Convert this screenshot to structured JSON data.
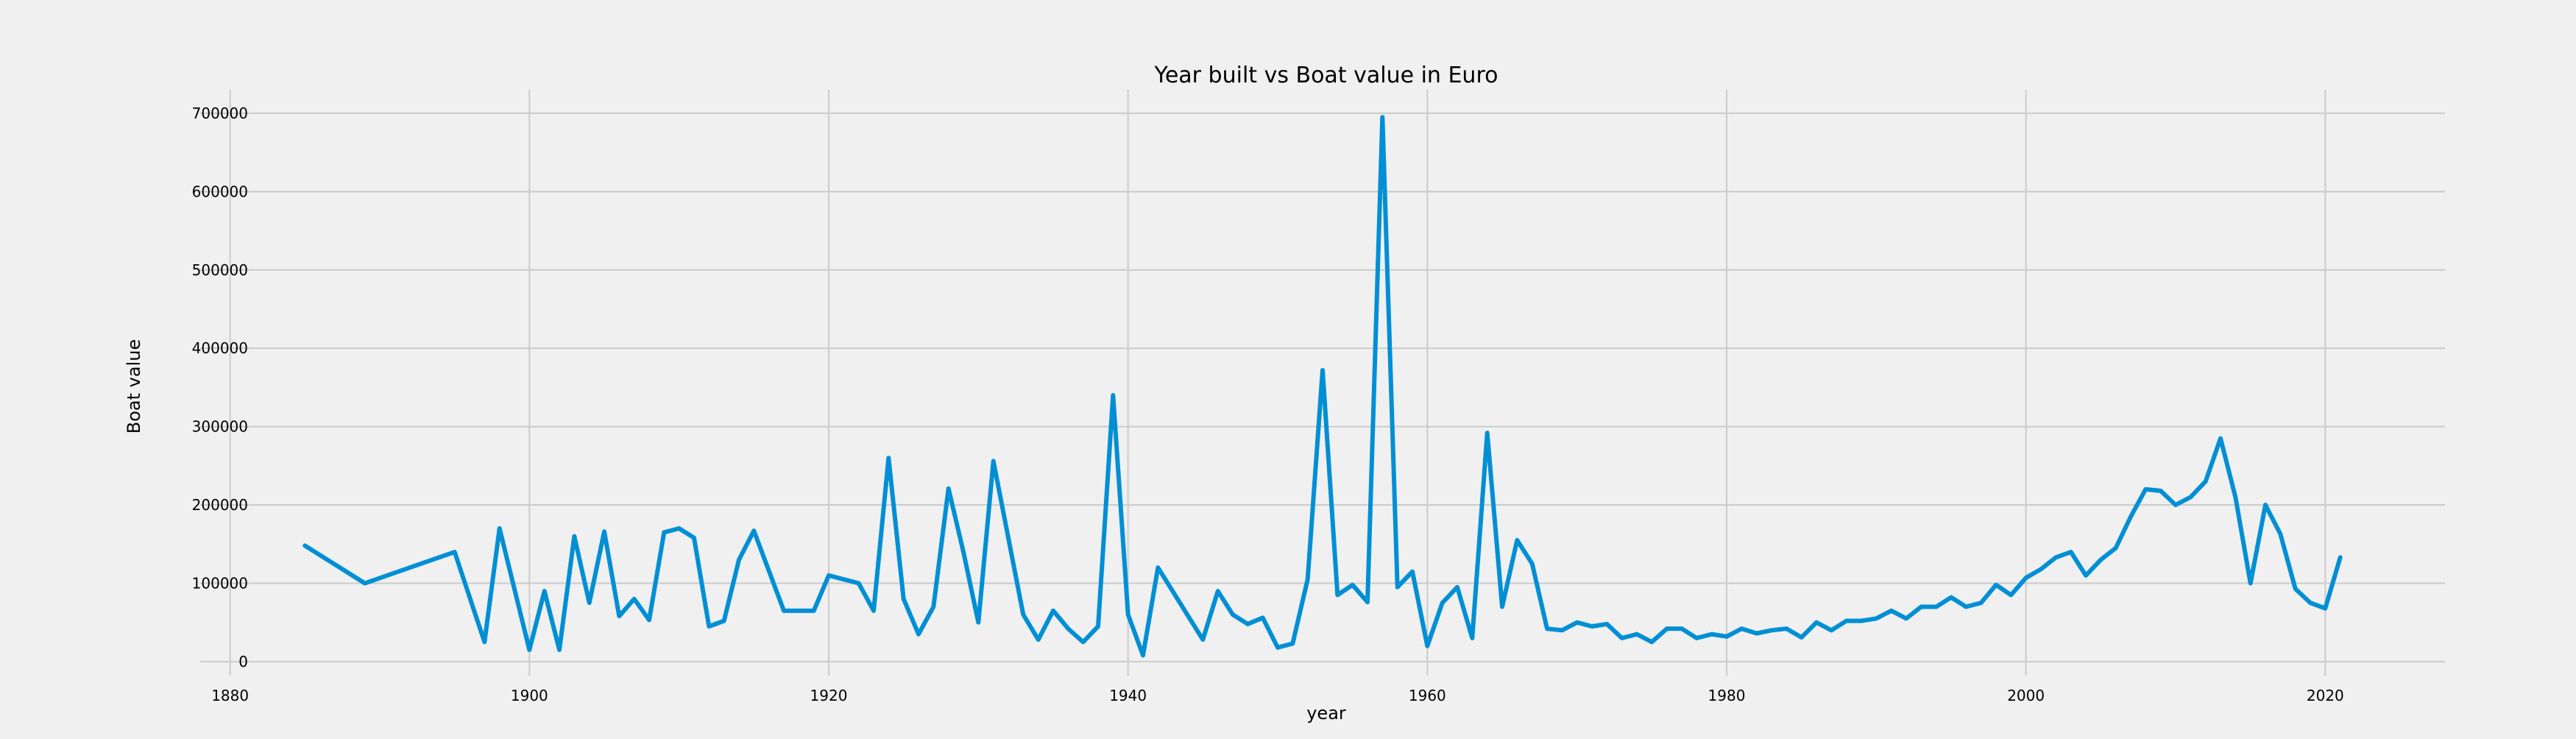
{
  "chart_data": {
    "type": "line",
    "title": "Year built vs Boat value in Euro",
    "xlabel": "year",
    "ylabel": "Boat value",
    "xlim": [
      1878,
      2028
    ],
    "ylim": [
      -18000,
      730000
    ],
    "grid": true,
    "style": "fivethirtyeight",
    "colors": {
      "line": "#008fd5",
      "background": "#f0f0f0",
      "grid": "#cbcbcb"
    },
    "x_ticks": [
      1880,
      1900,
      1920,
      1940,
      1960,
      1980,
      2000,
      2020
    ],
    "x_tick_labels": [
      "1880",
      "1900",
      "1920",
      "1940",
      "1960",
      "1980",
      "2000",
      "2020"
    ],
    "y_ticks": [
      0,
      100000,
      200000,
      300000,
      400000,
      500000,
      600000,
      700000
    ],
    "y_tick_labels": [
      "0",
      "100000",
      "200000",
      "300000",
      "400000",
      "500000",
      "600000",
      "700000"
    ],
    "series": [
      {
        "name": "Boat value",
        "x": [
          1885,
          1889,
          1895,
          1897,
          1898,
          1900,
          1901,
          1902,
          1903,
          1904,
          1905,
          1906,
          1907,
          1908,
          1909,
          1910,
          1911,
          1912,
          1913,
          1914,
          1915,
          1917,
          1919,
          1920,
          1922,
          1923,
          1924,
          1925,
          1926,
          1927,
          1928,
          1929,
          1930,
          1931,
          1933,
          1934,
          1935,
          1936,
          1937,
          1938,
          1939,
          1940,
          1941,
          1942,
          1945,
          1946,
          1947,
          1948,
          1949,
          1950,
          1951,
          1952,
          1953,
          1954,
          1955,
          1956,
          1957,
          1958,
          1959,
          1960,
          1961,
          1962,
          1963,
          1964,
          1965,
          1966,
          1967,
          1968,
          1969,
          1970,
          1971,
          1972,
          1973,
          1974,
          1975,
          1976,
          1977,
          1978,
          1979,
          1980,
          1981,
          1982,
          1983,
          1984,
          1985,
          1986,
          1987,
          1988,
          1989,
          1990,
          1991,
          1992,
          1993,
          1994,
          1995,
          1996,
          1997,
          1998,
          1999,
          2000,
          2001,
          2002,
          2003,
          2004,
          2005,
          2006,
          2007,
          2008,
          2009,
          2010,
          2011,
          2012,
          2013,
          2014,
          2015,
          2016,
          2017,
          2018,
          2019,
          2020,
          2021
        ],
        "values": [
          148000,
          100000,
          140000,
          25000,
          170000,
          15000,
          90000,
          15000,
          160000,
          75000,
          166000,
          58000,
          80000,
          53000,
          165000,
          170000,
          158000,
          45000,
          52000,
          130000,
          167000,
          65000,
          65000,
          110000,
          100000,
          65000,
          260000,
          80000,
          35000,
          70000,
          221000,
          140000,
          50000,
          256000,
          60000,
          28000,
          65000,
          42000,
          25000,
          45000,
          340000,
          60000,
          8000,
          120000,
          28000,
          90000,
          60000,
          48000,
          56000,
          18000,
          23000,
          105000,
          372000,
          85000,
          98000,
          76000,
          695000,
          95000,
          115000,
          20000,
          75000,
          95000,
          30000,
          292000,
          70000,
          155000,
          125000,
          42000,
          40000,
          50000,
          45000,
          48000,
          30000,
          35000,
          25000,
          42000,
          42000,
          30000,
          35000,
          32000,
          42000,
          36000,
          40000,
          42000,
          31000,
          50000,
          40000,
          52000,
          52000,
          55000,
          65000,
          55000,
          70000,
          70000,
          82000,
          70000,
          75000,
          98000,
          85000,
          107000,
          118000,
          133000,
          140000,
          110000,
          130000,
          145000,
          185000,
          220000,
          218000,
          200000,
          210000,
          230000,
          285000,
          210000,
          100000,
          200000,
          163000,
          93000,
          75000,
          68000,
          133000
        ]
      }
    ]
  }
}
